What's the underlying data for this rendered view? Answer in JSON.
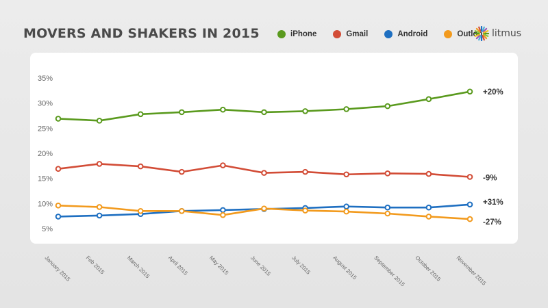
{
  "header": {
    "title": "MOVERS AND SHAKERS IN 2015",
    "brand_name": "litmus",
    "brand_icon": "litmus-logo-icon"
  },
  "colors": {
    "iPhone": "#5a9a1e",
    "Gmail": "#d24c36",
    "Android": "#1e6fc1",
    "Outlook": "#f29a1d"
  },
  "chart_data": {
    "type": "line",
    "title": "MOVERS AND SHAKERS IN 2015",
    "xlabel": "",
    "ylabel": "",
    "ylim": [
      5,
      35
    ],
    "yticks": [
      5,
      10,
      15,
      20,
      25,
      30,
      35
    ],
    "ytick_labels": [
      "5%",
      "10%",
      "15%",
      "20%",
      "25%",
      "30%",
      "35%"
    ],
    "categories": [
      "January 2015",
      "Feb 2015",
      "March 2015",
      "April 2015",
      "May 2015",
      "June 2015",
      "July 2015",
      "August 2015",
      "September 2015",
      "October 2015",
      "November 2015"
    ],
    "grid": false,
    "legend_position": "top",
    "series": [
      {
        "name": "iPhone",
        "values": [
          26.9,
          26.5,
          27.8,
          28.2,
          28.7,
          28.2,
          28.4,
          28.8,
          29.4,
          30.8,
          32.3
        ],
        "end_label": "+20%"
      },
      {
        "name": "Gmail",
        "values": [
          16.9,
          17.9,
          17.4,
          16.3,
          17.6,
          16.1,
          16.3,
          15.8,
          16.0,
          15.9,
          15.3
        ],
        "end_label": "-9%"
      },
      {
        "name": "Android",
        "values": [
          7.4,
          7.6,
          7.9,
          8.5,
          8.7,
          8.9,
          9.1,
          9.4,
          9.2,
          9.2,
          9.8
        ],
        "end_label": "+31%"
      },
      {
        "name": "Outlook",
        "values": [
          9.6,
          9.3,
          8.5,
          8.5,
          7.7,
          9.0,
          8.6,
          8.4,
          8.0,
          7.4,
          6.9
        ],
        "end_label": "-27%"
      }
    ]
  }
}
